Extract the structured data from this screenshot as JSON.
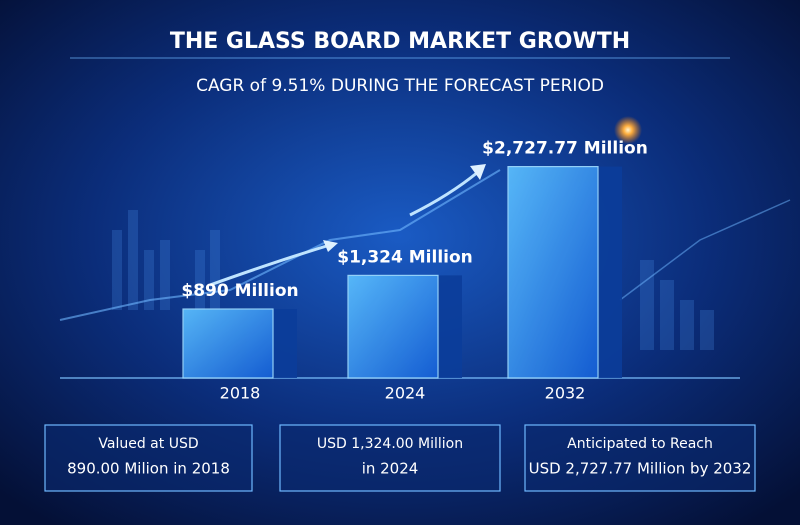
{
  "chart_data": {
    "type": "bar",
    "title": "THE GLASS BOARD MARKET GROWTH",
    "subtitle": "CAGR of 9.51% DURING THE FORECAST PERIOD",
    "categories": [
      "2018",
      "2024",
      "2032"
    ],
    "values": [
      890,
      1324,
      2727.77
    ],
    "value_labels": [
      "$890 Million",
      "$1,324 Million",
      "$2,727.77 Million"
    ],
    "ylim": [
      0,
      2800
    ],
    "color": "#2f8fff",
    "annotations": [
      [
        "Valued at USD",
        "890.00 Milion in 2018"
      ],
      [
        "USD 1,324.00 Million",
        "in 2024"
      ],
      [
        "Anticipated to Reach",
        "USD 2,727.77 Million by 2032"
      ]
    ]
  }
}
